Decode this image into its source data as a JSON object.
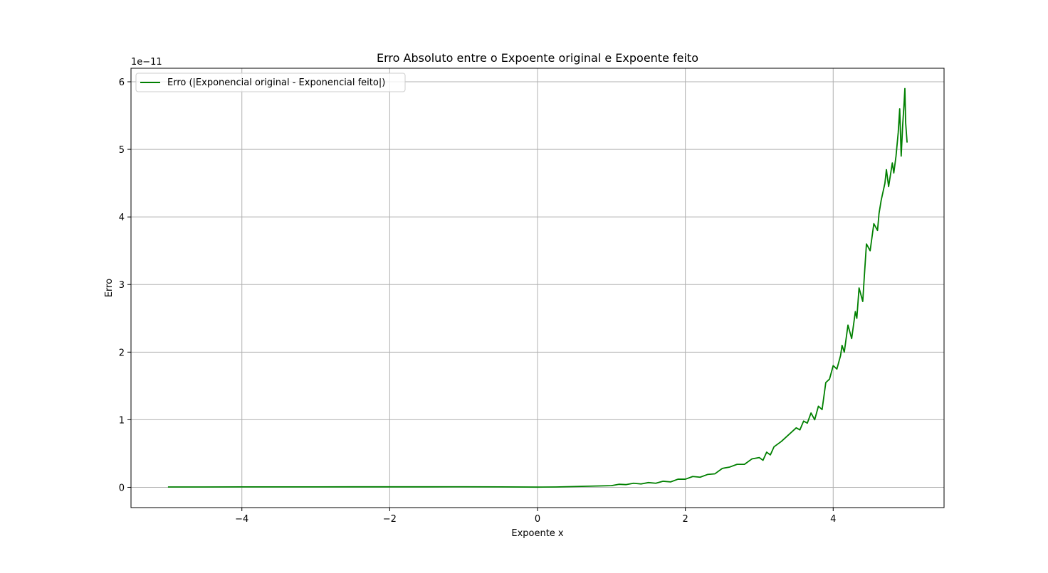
{
  "chart_data": {
    "type": "line",
    "title": "Erro Absoluto entre o Expoente original e Expoente feito",
    "xlabel": "Expoente x",
    "ylabel": "Erro",
    "y_offset_label": "1e−11",
    "xlim": [
      -5.5,
      5.5
    ],
    "ylim": [
      -0.3,
      6.2
    ],
    "x_ticks": [
      -4,
      -2,
      0,
      2,
      4
    ],
    "x_tick_labels": [
      "−4",
      "−2",
      "0",
      "2",
      "4"
    ],
    "y_ticks": [
      0,
      1,
      2,
      3,
      4,
      5,
      6
    ],
    "y_tick_labels": [
      "0",
      "1",
      "2",
      "3",
      "4",
      "5",
      "6"
    ],
    "grid": true,
    "legend_position": "top-left",
    "line_color": "#008000",
    "series": [
      {
        "name": "Erro (|Exponencial original - Exponencial feito|)",
        "x": [
          -5.0,
          -4.5,
          -4.0,
          -3.5,
          -3.0,
          -2.5,
          -2.0,
          -1.5,
          -1.0,
          -0.5,
          0.0,
          0.25,
          0.5,
          0.75,
          1.0,
          1.1,
          1.2,
          1.3,
          1.4,
          1.5,
          1.6,
          1.7,
          1.8,
          1.9,
          2.0,
          2.1,
          2.2,
          2.3,
          2.4,
          2.5,
          2.6,
          2.7,
          2.8,
          2.9,
          3.0,
          3.05,
          3.1,
          3.15,
          3.2,
          3.3,
          3.4,
          3.5,
          3.55,
          3.6,
          3.65,
          3.7,
          3.75,
          3.8,
          3.85,
          3.9,
          3.95,
          4.0,
          4.05,
          4.1,
          4.12,
          4.15,
          4.2,
          4.25,
          4.3,
          4.32,
          4.35,
          4.4,
          4.42,
          4.45,
          4.5,
          4.55,
          4.6,
          4.62,
          4.65,
          4.7,
          4.72,
          4.75,
          4.8,
          4.82,
          4.85,
          4.88,
          4.9,
          4.92,
          4.94,
          4.96,
          4.97,
          4.98,
          5.0
        ],
        "values": [
          0.005,
          0.005,
          0.006,
          0.006,
          0.006,
          0.007,
          0.007,
          0.007,
          0.008,
          0.006,
          0.003,
          0.005,
          0.012,
          0.018,
          0.025,
          0.045,
          0.04,
          0.06,
          0.05,
          0.07,
          0.06,
          0.09,
          0.08,
          0.12,
          0.12,
          0.16,
          0.15,
          0.19,
          0.2,
          0.28,
          0.3,
          0.34,
          0.34,
          0.42,
          0.44,
          0.4,
          0.52,
          0.48,
          0.6,
          0.68,
          0.78,
          0.88,
          0.85,
          0.98,
          0.95,
          1.1,
          1.0,
          1.2,
          1.15,
          1.55,
          1.6,
          1.8,
          1.75,
          1.95,
          2.1,
          2.0,
          2.4,
          2.2,
          2.6,
          2.5,
          2.95,
          2.75,
          3.1,
          3.6,
          3.5,
          3.9,
          3.8,
          4.05,
          4.25,
          4.5,
          4.7,
          4.45,
          4.8,
          4.65,
          4.9,
          5.25,
          5.6,
          4.9,
          5.35,
          5.7,
          5.9,
          5.4,
          5.1
        ]
      }
    ]
  }
}
